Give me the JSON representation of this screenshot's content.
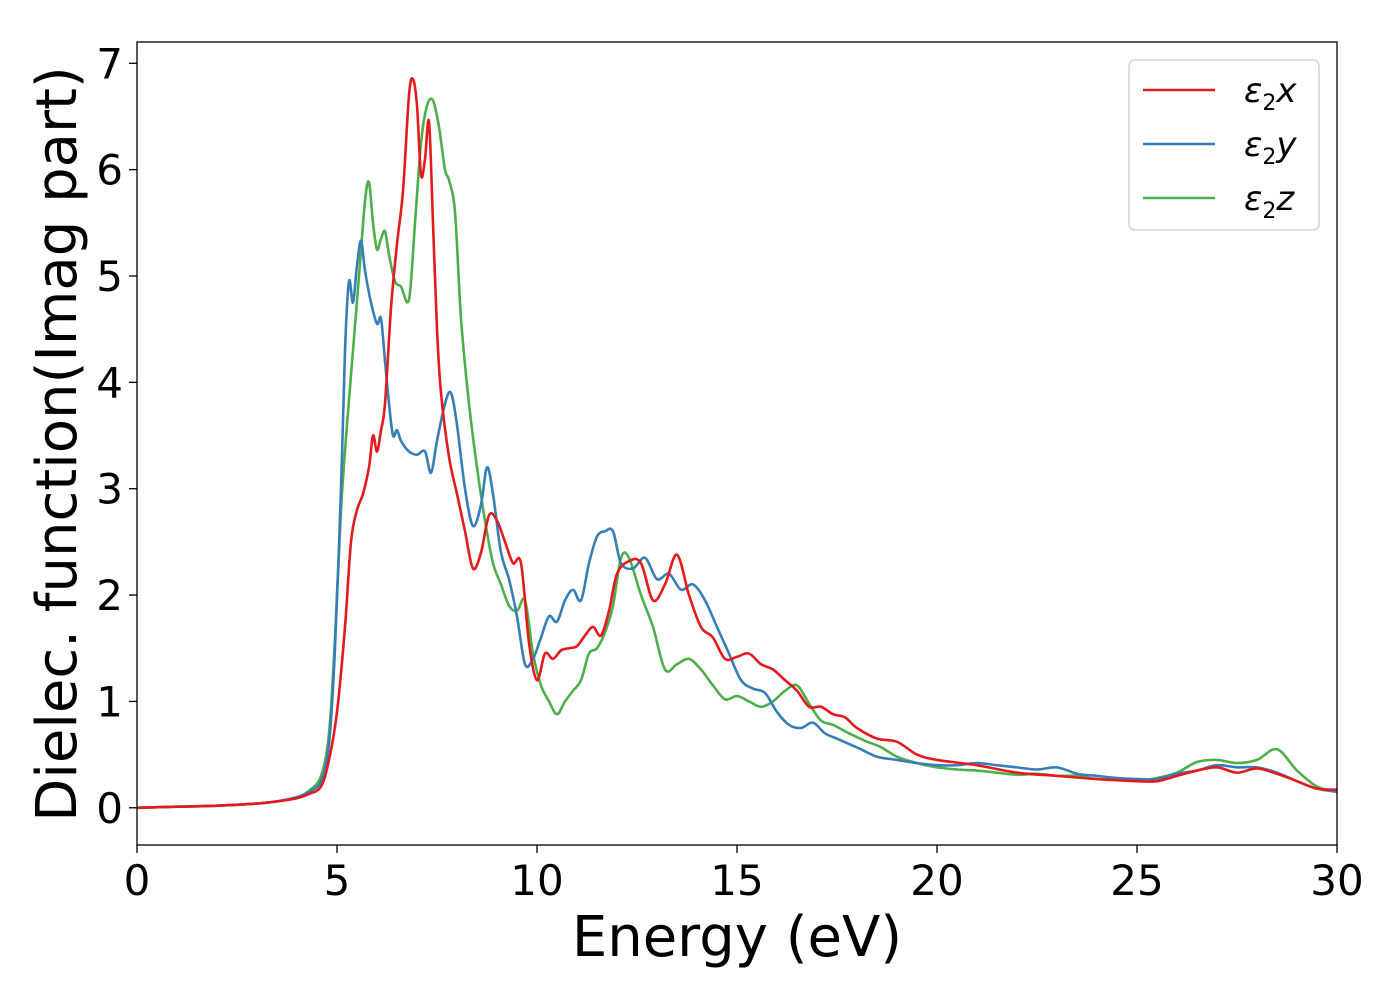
{
  "chart_data": {
    "type": "line",
    "xlabel": "Energy (eV)",
    "ylabel": "Dielec. function(Imag part)",
    "xlim": [
      0,
      30
    ],
    "ylim": [
      -0.35,
      7.2
    ],
    "xticks": [
      0,
      5,
      10,
      15,
      20,
      25,
      30
    ],
    "yticks": [
      0,
      1,
      2,
      3,
      4,
      5,
      6,
      7
    ],
    "grid": false,
    "legend_position": "top-right",
    "series": [
      {
        "name": "ε2x",
        "legend_base": "ε",
        "legend_sub": "2",
        "legend_suffix": "x",
        "color": "#e41a1c",
        "x": [
          0,
          1,
          2,
          3,
          3.5,
          4,
          4.3,
          4.6,
          4.8,
          5.0,
          5.2,
          5.35,
          5.5,
          5.65,
          5.8,
          5.9,
          6.0,
          6.1,
          6.2,
          6.35,
          6.5,
          6.65,
          6.8,
          6.9,
          7.0,
          7.1,
          7.2,
          7.3,
          7.4,
          7.5,
          7.6,
          7.8,
          8.0,
          8.2,
          8.4,
          8.6,
          8.8,
          9.0,
          9.2,
          9.4,
          9.6,
          9.8,
          10.0,
          10.2,
          10.4,
          10.6,
          10.8,
          11.0,
          11.2,
          11.4,
          11.6,
          11.8,
          12.0,
          12.3,
          12.6,
          12.9,
          13.2,
          13.5,
          13.8,
          14.1,
          14.4,
          14.7,
          15.0,
          15.3,
          15.6,
          15.9,
          16.2,
          16.5,
          16.8,
          17.1,
          17.4,
          17.7,
          18.0,
          18.5,
          19.0,
          19.5,
          20,
          21,
          22,
          23,
          24,
          25,
          25.5,
          26,
          26.5,
          27,
          27.5,
          28,
          28.5,
          29,
          29.5,
          30
        ],
        "y": [
          0.0,
          0.01,
          0.02,
          0.04,
          0.06,
          0.09,
          0.13,
          0.2,
          0.45,
          0.9,
          1.7,
          2.5,
          2.8,
          2.95,
          3.2,
          3.5,
          3.35,
          3.55,
          3.8,
          4.7,
          5.3,
          5.8,
          6.7,
          6.85,
          6.6,
          5.95,
          6.1,
          6.45,
          5.5,
          4.5,
          3.9,
          3.3,
          2.95,
          2.6,
          2.25,
          2.4,
          2.75,
          2.7,
          2.5,
          2.3,
          2.3,
          1.55,
          1.2,
          1.45,
          1.4,
          1.48,
          1.5,
          1.52,
          1.62,
          1.7,
          1.62,
          1.85,
          2.2,
          2.32,
          2.3,
          1.95,
          2.1,
          2.38,
          2.0,
          1.7,
          1.6,
          1.4,
          1.42,
          1.45,
          1.35,
          1.3,
          1.2,
          1.1,
          0.95,
          0.95,
          0.88,
          0.85,
          0.75,
          0.65,
          0.62,
          0.5,
          0.45,
          0.4,
          0.33,
          0.3,
          0.27,
          0.25,
          0.25,
          0.3,
          0.35,
          0.38,
          0.33,
          0.37,
          0.32,
          0.25,
          0.18,
          0.17
        ]
      },
      {
        "name": "ε2y",
        "legend_base": "ε",
        "legend_sub": "2",
        "legend_suffix": "y",
        "color": "#377eb8",
        "x": [
          0,
          1,
          2,
          3,
          3.5,
          4,
          4.3,
          4.6,
          4.8,
          4.95,
          5.1,
          5.2,
          5.3,
          5.4,
          5.5,
          5.6,
          5.7,
          5.85,
          6.0,
          6.1,
          6.2,
          6.3,
          6.4,
          6.5,
          6.6,
          6.8,
          7.0,
          7.2,
          7.35,
          7.5,
          7.7,
          7.85,
          8.0,
          8.2,
          8.4,
          8.6,
          8.75,
          8.9,
          9.1,
          9.3,
          9.5,
          9.7,
          9.9,
          10.1,
          10.3,
          10.5,
          10.7,
          10.9,
          11.1,
          11.3,
          11.5,
          11.7,
          11.9,
          12.1,
          12.4,
          12.7,
          13.0,
          13.3,
          13.6,
          13.9,
          14.2,
          14.5,
          14.8,
          15.1,
          15.4,
          15.7,
          16.0,
          16.3,
          16.6,
          16.9,
          17.2,
          17.5,
          17.8,
          18.1,
          18.5,
          19,
          19.5,
          20,
          20.5,
          21,
          21.5,
          22,
          22.5,
          23,
          23.5,
          24,
          24.5,
          25,
          25.5,
          26,
          26.5,
          27,
          27.5,
          28,
          28.5,
          29,
          29.5,
          30
        ],
        "y": [
          0.0,
          0.01,
          0.02,
          0.04,
          0.06,
          0.1,
          0.15,
          0.25,
          0.6,
          1.5,
          3.0,
          4.3,
          4.95,
          4.75,
          5.1,
          5.33,
          5.05,
          4.75,
          4.55,
          4.6,
          4.2,
          3.8,
          3.5,
          3.55,
          3.45,
          3.35,
          3.32,
          3.35,
          3.15,
          3.45,
          3.8,
          3.9,
          3.6,
          3.0,
          2.65,
          2.85,
          3.2,
          2.95,
          2.4,
          2.15,
          1.8,
          1.35,
          1.4,
          1.6,
          1.8,
          1.75,
          1.95,
          2.05,
          1.95,
          2.3,
          2.55,
          2.6,
          2.6,
          2.3,
          2.25,
          2.35,
          2.15,
          2.2,
          2.05,
          2.1,
          1.95,
          1.7,
          1.45,
          1.2,
          1.12,
          1.08,
          0.9,
          0.78,
          0.75,
          0.8,
          0.7,
          0.65,
          0.6,
          0.55,
          0.48,
          0.45,
          0.42,
          0.4,
          0.4,
          0.42,
          0.4,
          0.38,
          0.36,
          0.38,
          0.32,
          0.3,
          0.28,
          0.27,
          0.27,
          0.32,
          0.35,
          0.4,
          0.38,
          0.38,
          0.33,
          0.25,
          0.18,
          0.15
        ]
      },
      {
        "name": "ε2z",
        "legend_base": "ε",
        "legend_sub": "2",
        "legend_suffix": "z",
        "color": "#4daf4a",
        "x": [
          0,
          1,
          2,
          3,
          3.5,
          4,
          4.3,
          4.6,
          4.8,
          4.95,
          5.1,
          5.25,
          5.4,
          5.55,
          5.7,
          5.8,
          5.9,
          6.0,
          6.1,
          6.2,
          6.3,
          6.45,
          6.6,
          6.8,
          6.95,
          7.1,
          7.25,
          7.4,
          7.55,
          7.7,
          7.8,
          7.95,
          8.1,
          8.3,
          8.5,
          8.7,
          8.9,
          9.1,
          9.3,
          9.5,
          9.7,
          9.9,
          10.1,
          10.3,
          10.5,
          10.7,
          10.9,
          11.1,
          11.3,
          11.5,
          11.7,
          11.9,
          12.1,
          12.3,
          12.6,
          12.9,
          13.2,
          13.5,
          13.8,
          14.1,
          14.4,
          14.7,
          15.0,
          15.3,
          15.6,
          15.9,
          16.2,
          16.5,
          16.8,
          17.1,
          17.4,
          17.8,
          18.2,
          18.6,
          19,
          19.5,
          20,
          20.5,
          21,
          21.5,
          22,
          22.5,
          23,
          23.5,
          24,
          24.5,
          25,
          25.5,
          26,
          26.5,
          27,
          27.5,
          28,
          28.5,
          29,
          29.5,
          30
        ],
        "y": [
          0.0,
          0.01,
          0.02,
          0.04,
          0.06,
          0.1,
          0.16,
          0.3,
          0.7,
          1.6,
          2.8,
          3.6,
          4.3,
          5.0,
          5.7,
          5.88,
          5.5,
          5.25,
          5.35,
          5.42,
          5.2,
          4.95,
          4.9,
          4.78,
          5.5,
          6.25,
          6.6,
          6.65,
          6.4,
          6.0,
          5.9,
          5.6,
          4.6,
          3.8,
          3.2,
          2.7,
          2.3,
          2.1,
          1.9,
          1.85,
          1.95,
          1.45,
          1.15,
          1.0,
          0.88,
          1.0,
          1.1,
          1.2,
          1.45,
          1.5,
          1.65,
          1.9,
          2.35,
          2.35,
          2.0,
          1.7,
          1.3,
          1.35,
          1.4,
          1.3,
          1.15,
          1.02,
          1.05,
          1.0,
          0.95,
          1.0,
          1.1,
          1.15,
          0.98,
          0.82,
          0.78,
          0.7,
          0.63,
          0.57,
          0.48,
          0.42,
          0.38,
          0.36,
          0.35,
          0.33,
          0.31,
          0.32,
          0.3,
          0.3,
          0.27,
          0.27,
          0.25,
          0.28,
          0.33,
          0.43,
          0.45,
          0.42,
          0.45,
          0.55,
          0.35,
          0.2,
          0.15
        ]
      }
    ]
  }
}
